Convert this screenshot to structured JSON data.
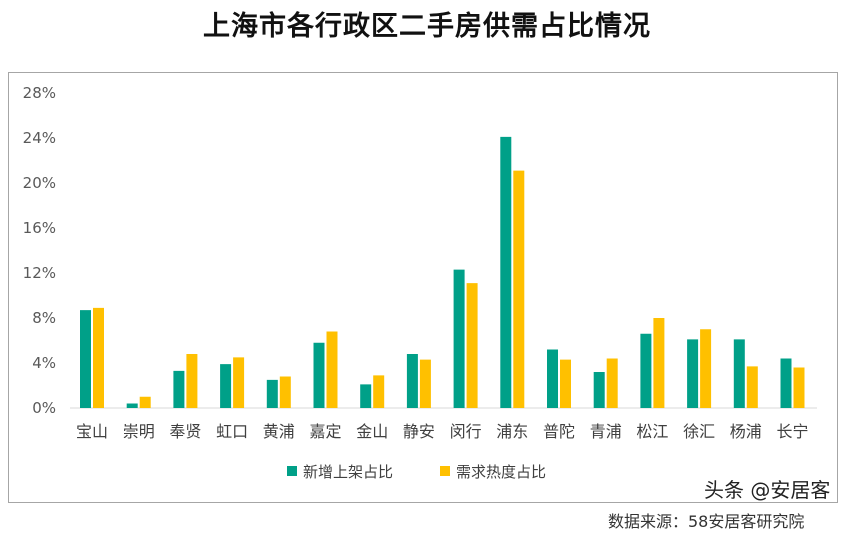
{
  "title": "上海市各行政区二手房供需占比情况",
  "chart_data": {
    "type": "bar",
    "title": "上海市各行政区二手房供需占比情况",
    "categories": [
      "宝山",
      "崇明",
      "奉贤",
      "虹口",
      "黄浦",
      "嘉定",
      "金山",
      "静安",
      "闵行",
      "浦东",
      "普陀",
      "青浦",
      "松江",
      "徐汇",
      "杨浦",
      "长宁"
    ],
    "series": [
      {
        "name": "新增上架占比",
        "color": "#00a088",
        "values": [
          8.7,
          0.4,
          3.3,
          3.9,
          2.5,
          5.8,
          2.1,
          4.8,
          12.3,
          24.1,
          5.2,
          3.2,
          6.6,
          6.1,
          6.1,
          4.4
        ]
      },
      {
        "name": "需求热度占比",
        "color": "#ffc000",
        "values": [
          8.9,
          1.0,
          4.8,
          4.5,
          2.8,
          6.8,
          2.9,
          4.3,
          11.1,
          21.1,
          4.3,
          4.4,
          8.0,
          7.0,
          3.7,
          3.6
        ]
      }
    ],
    "ylim": [
      0,
      28
    ],
    "yticks": [
      "0%",
      "4%",
      "8%",
      "12%",
      "16%",
      "20%",
      "24%",
      "28%"
    ],
    "grid": false,
    "legend": "bottom"
  },
  "source": "数据来源：58安居客研究院",
  "watermark": "头条 @安居客"
}
